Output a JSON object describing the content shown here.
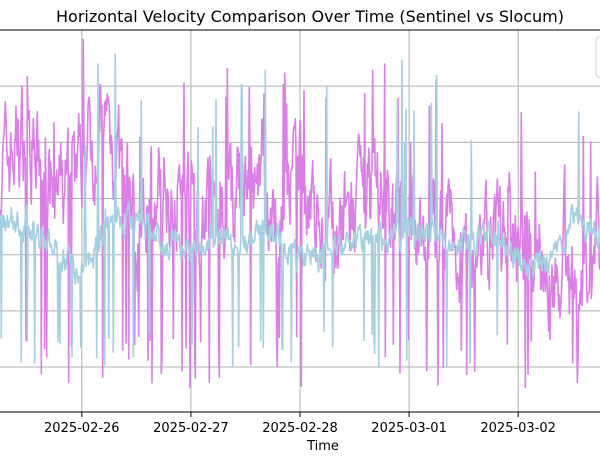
{
  "chart_data": {
    "type": "line",
    "title": "Horizontal Velocity Comparison Over Time (Sentinel vs Slocum)",
    "xlabel": "Time",
    "ylabel": "",
    "x_ticks": [
      "2025-02-26",
      "2025-02-27",
      "2025-02-28",
      "2025-03-01",
      "2025-03-02"
    ],
    "xlim": [
      "2025-02-25T06:00",
      "2025-03-02T18:00"
    ],
    "ylim": [
      -0.1,
      0.75
    ],
    "y_grid_values": [
      0.0,
      0.125,
      0.25,
      0.375,
      0.5,
      0.625
    ],
    "grid": true,
    "legend": {
      "placement": "top-right",
      "entries": []
    },
    "series": [
      {
        "color": "#da7fe6",
        "x": [
          "2025-02-25T06:00",
          "2025-02-25T12:00",
          "2025-02-25T18:00",
          "2025-02-26T00:00",
          "2025-02-26T06:00",
          "2025-02-26T12:00",
          "2025-02-26T18:00",
          "2025-02-27T00:00",
          "2025-02-27T06:00",
          "2025-02-27T12:00",
          "2025-02-27T18:00",
          "2025-02-28T00:00",
          "2025-02-28T06:00",
          "2025-02-28T12:00",
          "2025-02-28T18:00",
          "2025-03-01T00:00",
          "2025-03-01T06:00",
          "2025-03-01T12:00",
          "2025-03-01T18:00",
          "2025-03-02T00:00",
          "2025-03-02T06:00",
          "2025-03-02T12:00",
          "2025-03-02T18:00"
        ],
        "y": [
          0.44,
          0.53,
          0.36,
          0.48,
          0.54,
          0.3,
          0.41,
          0.37,
          0.33,
          0.39,
          0.33,
          0.42,
          0.3,
          0.33,
          0.39,
          0.29,
          0.33,
          0.26,
          0.3,
          0.27,
          0.23,
          0.14,
          0.3
        ]
      },
      {
        "color": "#a6cfe0",
        "x": [
          "2025-02-25T06:00",
          "2025-02-25T12:00",
          "2025-02-25T18:00",
          "2025-02-26T00:00",
          "2025-02-26T06:00",
          "2025-02-26T12:00",
          "2025-02-26T18:00",
          "2025-02-27T00:00",
          "2025-02-27T06:00",
          "2025-02-27T12:00",
          "2025-02-27T18:00",
          "2025-02-28T00:00",
          "2025-02-28T06:00",
          "2025-02-28T12:00",
          "2025-02-28T18:00",
          "2025-03-01T00:00",
          "2025-03-01T06:00",
          "2025-03-01T12:00",
          "2025-03-01T18:00",
          "2025-03-02T00:00",
          "2025-03-02T06:00",
          "2025-03-02T12:00",
          "2025-03-02T18:00"
        ],
        "y": [
          0.33,
          0.32,
          0.27,
          0.21,
          0.33,
          0.32,
          0.28,
          0.26,
          0.3,
          0.27,
          0.31,
          0.24,
          0.25,
          0.29,
          0.28,
          0.3,
          0.3,
          0.27,
          0.3,
          0.24,
          0.22,
          0.32,
          0.3
        ]
      }
    ]
  }
}
